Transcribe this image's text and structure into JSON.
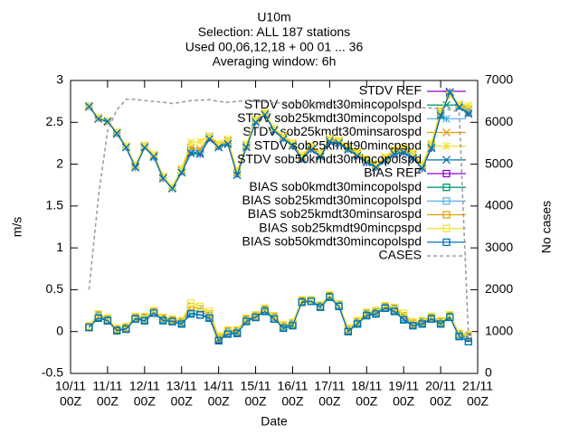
{
  "chart_data": {
    "type": "line",
    "title": [
      "U10m",
      "Selection: ALL    187 stations",
      "Used 00,06,12,18 + 00 01 ... 36",
      "Averaging window:  6h"
    ],
    "x_label": "Date",
    "y_label": "m/s",
    "y2_label": "No cases",
    "xlim": [
      0,
      264
    ],
    "xticks": [
      {
        "value": 0,
        "label": [
          "10/11",
          "00Z"
        ]
      },
      {
        "value": 24,
        "label": [
          "11/11",
          "00Z"
        ]
      },
      {
        "value": 48,
        "label": [
          "12/11",
          "00Z"
        ]
      },
      {
        "value": 72,
        "label": [
          "13/11",
          "00Z"
        ]
      },
      {
        "value": 96,
        "label": [
          "14/11",
          "00Z"
        ]
      },
      {
        "value": 120,
        "label": [
          "15/11",
          "00Z"
        ]
      },
      {
        "value": 144,
        "label": [
          "16/11",
          "00Z"
        ]
      },
      {
        "value": 168,
        "label": [
          "17/11",
          "00Z"
        ]
      },
      {
        "value": 192,
        "label": [
          "18/11",
          "00Z"
        ]
      },
      {
        "value": 216,
        "label": [
          "19/11",
          "00Z"
        ]
      },
      {
        "value": 240,
        "label": [
          "20/11",
          "00Z"
        ]
      },
      {
        "value": 264,
        "label": [
          "21/11",
          "00Z"
        ]
      }
    ],
    "ylim": [
      -0.5,
      3
    ],
    "yticks": [
      -0.5,
      0,
      0.5,
      1,
      1.5,
      2,
      2.5,
      3
    ],
    "y2lim": [
      0,
      7000
    ],
    "y2ticks": [
      0,
      1000,
      2000,
      3000,
      4000,
      5000,
      6000,
      7000
    ],
    "legend": "top-right",
    "grid": false,
    "x": [
      12,
      18,
      24,
      30,
      36,
      42,
      48,
      54,
      60,
      66,
      72,
      78,
      84,
      90,
      96,
      102,
      108,
      114,
      120,
      126,
      132,
      138,
      144,
      150,
      156,
      162,
      168,
      174,
      180,
      186,
      192,
      198,
      204,
      210,
      216,
      222,
      228,
      234,
      240,
      246,
      252,
      258
    ],
    "series": [
      {
        "name": "STDV REF",
        "color": "#9400d3",
        "marker": "plus",
        "values": [
          2.69,
          2.55,
          2.51,
          2.37,
          2.2,
          1.96,
          2.21,
          2.09,
          1.83,
          1.71,
          1.91,
          2.14,
          2.12,
          2.31,
          2.21,
          2.25,
          1.88,
          2.21,
          2.51,
          2.59,
          2.4,
          2.31,
          2.23,
          2.06,
          2.18,
          2.09,
          2.27,
          2.25,
          2.18,
          2.1,
          2.02,
          1.96,
          2.04,
          2.12,
          2.14,
          2.07,
          1.95,
          2.19,
          2.59,
          2.86,
          2.69,
          2.61
        ]
      },
      {
        "name": "STDV sob0kmdt30mincopolspd",
        "color": "#009e73",
        "marker": "cross",
        "values": [
          2.7,
          2.55,
          2.52,
          2.36,
          2.21,
          1.97,
          2.2,
          2.1,
          1.84,
          1.72,
          1.9,
          2.15,
          2.13,
          2.3,
          2.2,
          2.26,
          1.87,
          2.22,
          2.52,
          2.6,
          2.41,
          2.3,
          2.22,
          2.07,
          2.19,
          2.1,
          2.28,
          2.26,
          2.19,
          2.11,
          2.03,
          1.97,
          2.05,
          2.13,
          2.15,
          2.08,
          1.96,
          2.2,
          2.6,
          2.85,
          2.68,
          2.62
        ]
      },
      {
        "name": "STDV sob25kmdt30mincopolspd",
        "color": "#56b4e9",
        "marker": "star",
        "values": [
          2.69,
          2.56,
          2.51,
          2.38,
          2.2,
          1.97,
          2.21,
          2.08,
          1.84,
          1.71,
          1.92,
          2.17,
          2.15,
          2.33,
          2.22,
          2.26,
          1.9,
          2.22,
          2.52,
          2.6,
          2.4,
          2.32,
          2.23,
          2.08,
          2.19,
          2.11,
          2.29,
          2.26,
          2.18,
          2.11,
          2.04,
          1.98,
          2.05,
          2.14,
          2.17,
          2.1,
          1.97,
          2.21,
          2.62,
          2.84,
          2.7,
          2.65
        ]
      },
      {
        "name": "STDV sob25kmdt30minsarospd",
        "color": "#e69f00",
        "marker": "cross",
        "values": [
          2.68,
          2.55,
          2.5,
          2.38,
          2.21,
          1.98,
          2.22,
          2.11,
          1.85,
          1.72,
          1.93,
          2.2,
          2.18,
          2.33,
          2.23,
          2.28,
          1.9,
          2.23,
          2.53,
          2.61,
          2.42,
          2.33,
          2.24,
          2.09,
          2.2,
          2.12,
          2.3,
          2.27,
          2.2,
          2.13,
          2.05,
          1.99,
          2.07,
          2.16,
          2.18,
          2.12,
          1.98,
          2.23,
          2.63,
          2.83,
          2.71,
          2.66
        ]
      },
      {
        "name": "STDV sob25kmdt90mincpspd",
        "color": "#f0e442",
        "marker": "star",
        "values": [
          2.7,
          2.56,
          2.52,
          2.39,
          2.22,
          1.99,
          2.23,
          2.12,
          1.86,
          1.73,
          1.95,
          2.26,
          2.27,
          2.34,
          2.25,
          2.3,
          1.92,
          2.24,
          2.54,
          2.62,
          2.43,
          2.34,
          2.26,
          2.11,
          2.22,
          2.14,
          2.31,
          2.29,
          2.22,
          2.15,
          2.07,
          2.01,
          2.09,
          2.18,
          2.2,
          2.14,
          2.0,
          2.25,
          2.65,
          2.82,
          2.72,
          2.7
        ]
      },
      {
        "name": "STDV sob50kmdt30mincopolspd",
        "color": "#0072b2",
        "marker": "cross",
        "values": [
          2.69,
          2.54,
          2.51,
          2.37,
          2.2,
          1.96,
          2.2,
          2.09,
          1.83,
          1.71,
          1.9,
          2.13,
          2.12,
          2.3,
          2.2,
          2.24,
          1.87,
          2.2,
          2.5,
          2.59,
          2.4,
          2.3,
          2.22,
          2.06,
          2.17,
          2.09,
          2.27,
          2.25,
          2.17,
          2.1,
          2.02,
          1.96,
          2.04,
          2.12,
          2.14,
          2.07,
          1.95,
          2.19,
          2.58,
          2.86,
          2.68,
          2.6
        ]
      },
      {
        "name": "BIAS REF",
        "color": "#9400d3",
        "marker": "square",
        "values": [
          0.05,
          0.17,
          0.13,
          0.02,
          0.03,
          0.15,
          0.14,
          0.22,
          0.14,
          0.12,
          0.1,
          0.22,
          0.2,
          0.17,
          -0.1,
          -0.02,
          -0.02,
          0.13,
          0.17,
          0.25,
          0.15,
          0.05,
          0.08,
          0.36,
          0.36,
          0.3,
          0.42,
          0.31,
          0.0,
          0.1,
          0.2,
          0.22,
          0.28,
          0.25,
          0.15,
          0.08,
          0.1,
          0.15,
          0.1,
          0.18,
          -0.05,
          -0.07
        ]
      },
      {
        "name": "BIAS sob0kmdt30mincopolspd",
        "color": "#009e73",
        "marker": "square",
        "values": [
          0.05,
          0.17,
          0.13,
          0.02,
          0.03,
          0.15,
          0.14,
          0.22,
          0.14,
          0.12,
          0.1,
          0.22,
          0.2,
          0.17,
          -0.09,
          -0.02,
          -0.01,
          0.13,
          0.17,
          0.25,
          0.15,
          0.05,
          0.08,
          0.36,
          0.36,
          0.3,
          0.42,
          0.31,
          0.01,
          0.1,
          0.2,
          0.22,
          0.28,
          0.25,
          0.15,
          0.08,
          0.1,
          0.15,
          0.1,
          0.18,
          -0.05,
          -0.08
        ]
      },
      {
        "name": "BIAS sob25kmdt30mincopolspd",
        "color": "#56b4e9",
        "marker": "square",
        "values": [
          0.06,
          0.19,
          0.14,
          0.03,
          0.04,
          0.16,
          0.16,
          0.23,
          0.15,
          0.13,
          0.11,
          0.26,
          0.24,
          0.19,
          -0.08,
          0.0,
          0.0,
          0.14,
          0.18,
          0.26,
          0.17,
          0.06,
          0.09,
          0.37,
          0.37,
          0.31,
          0.43,
          0.32,
          0.02,
          0.11,
          0.21,
          0.23,
          0.29,
          0.27,
          0.17,
          0.09,
          0.11,
          0.16,
          0.11,
          0.19,
          -0.04,
          -0.06
        ]
      },
      {
        "name": "BIAS sob25kmdt30minsarospd",
        "color": "#e69f00",
        "marker": "square",
        "values": [
          0.06,
          0.2,
          0.15,
          0.03,
          0.05,
          0.17,
          0.17,
          0.24,
          0.16,
          0.14,
          0.12,
          0.3,
          0.27,
          0.21,
          -0.07,
          0.01,
          0.01,
          0.15,
          0.19,
          0.27,
          0.18,
          0.07,
          0.1,
          0.37,
          0.38,
          0.32,
          0.43,
          0.33,
          0.03,
          0.12,
          0.22,
          0.24,
          0.3,
          0.28,
          0.19,
          0.1,
          0.12,
          0.17,
          0.12,
          0.19,
          -0.03,
          -0.05
        ]
      },
      {
        "name": "BIAS sob25kmdt90mincpspd",
        "color": "#f0e442",
        "marker": "square",
        "values": [
          0.07,
          0.21,
          0.16,
          0.04,
          0.06,
          0.18,
          0.18,
          0.25,
          0.17,
          0.15,
          0.13,
          0.34,
          0.3,
          0.24,
          -0.05,
          0.02,
          0.02,
          0.16,
          0.2,
          0.28,
          0.19,
          0.08,
          0.11,
          0.38,
          0.38,
          0.32,
          0.44,
          0.33,
          0.04,
          0.13,
          0.23,
          0.25,
          0.31,
          0.29,
          0.22,
          0.12,
          0.13,
          0.18,
          0.13,
          0.2,
          -0.02,
          -0.04
        ]
      },
      {
        "name": "BIAS sob50kmdt30mincopolspd",
        "color": "#0072b2",
        "marker": "square",
        "values": [
          0.05,
          0.16,
          0.13,
          0.01,
          0.03,
          0.15,
          0.13,
          0.22,
          0.13,
          0.12,
          0.09,
          0.21,
          0.2,
          0.16,
          -0.11,
          -0.03,
          -0.02,
          0.12,
          0.17,
          0.24,
          0.15,
          0.04,
          0.07,
          0.35,
          0.36,
          0.29,
          0.41,
          0.3,
          0.0,
          0.09,
          0.19,
          0.21,
          0.28,
          0.24,
          0.14,
          0.07,
          0.09,
          0.15,
          0.09,
          0.17,
          -0.06,
          -0.12
        ]
      },
      {
        "name": "CASES",
        "color": "#999999",
        "dash": true,
        "axis": "y2",
        "values": [
          2000,
          4200,
          5800,
          6300,
          6550,
          6550,
          6520,
          6500,
          6480,
          6450,
          6480,
          6520,
          6530,
          6540,
          6500,
          6480,
          6500,
          6520,
          6500,
          6480,
          6470,
          6460,
          6450,
          6440,
          6430,
          6420,
          6420,
          6410,
          6400,
          6400,
          6390,
          6380,
          6380,
          6370,
          6360,
          6350,
          6350,
          6340,
          6330,
          6300,
          6250,
          900
        ]
      }
    ]
  }
}
